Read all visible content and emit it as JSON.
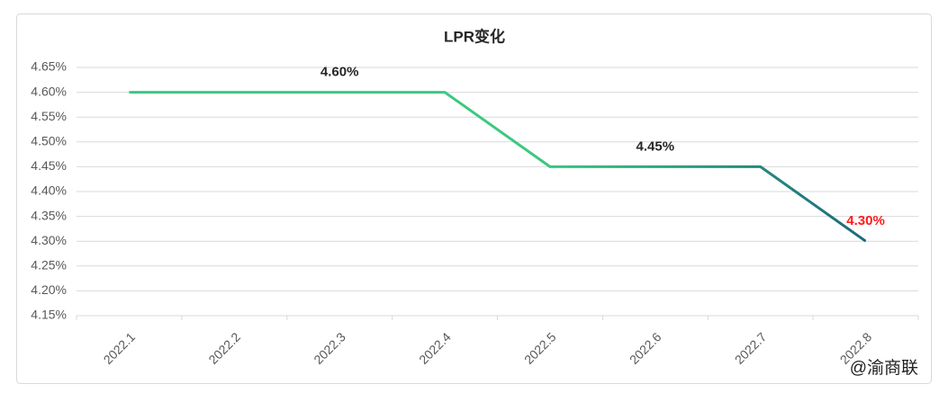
{
  "chart_data": {
    "type": "line",
    "title": "LPR变化",
    "categories": [
      "2022.1",
      "2022.2",
      "2022.3",
      "2022.4",
      "2022.5",
      "2022.6",
      "2022.7",
      "2022.8"
    ],
    "values": [
      4.6,
      4.6,
      4.6,
      4.6,
      4.45,
      4.45,
      4.45,
      4.3
    ],
    "value_labels": [
      null,
      null,
      "4.60%",
      null,
      null,
      "4.45%",
      null,
      "4.30%"
    ],
    "value_label_colors": [
      null,
      null,
      "#262626",
      null,
      null,
      "#262626",
      null,
      "#ff1a1a"
    ],
    "line_gradient": [
      "#3cc97f",
      "#1c6a7c"
    ],
    "ylim": [
      4.15,
      4.65
    ],
    "yticks": [
      {
        "value": 4.15,
        "label": "4.15%"
      },
      {
        "value": 4.2,
        "label": "4.20%"
      },
      {
        "value": 4.25,
        "label": "4.25%"
      },
      {
        "value": 4.3,
        "label": "4.30%"
      },
      {
        "value": 4.35,
        "label": "4.35%"
      },
      {
        "value": 4.4,
        "label": "4.40%"
      },
      {
        "value": 4.45,
        "label": "4.45%"
      },
      {
        "value": 4.5,
        "label": "4.50%"
      },
      {
        "value": 4.55,
        "label": "4.55%"
      },
      {
        "value": 4.6,
        "label": "4.60%"
      },
      {
        "value": 4.65,
        "label": "4.65%"
      }
    ],
    "grid": true,
    "watermark": "@渝商联"
  }
}
